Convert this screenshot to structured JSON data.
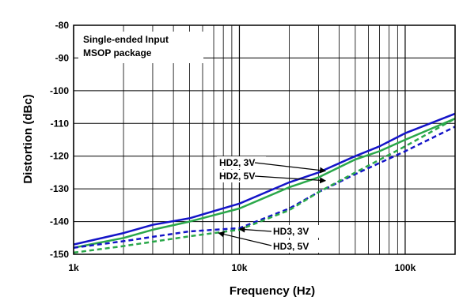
{
  "chart_data": {
    "type": "line",
    "xlabel": "Frequency (Hz)",
    "ylabel": "Distortion (dBc)",
    "xscale": "log",
    "xlim": [
      1000,
      200000
    ],
    "ylim": [
      -150,
      -80
    ],
    "grid": true,
    "x_tick_labels": [
      {
        "x": 1000,
        "label": "1k"
      },
      {
        "x": 10000,
        "label": "10k"
      },
      {
        "x": 100000,
        "label": "100k"
      }
    ],
    "y_ticks": [
      -150,
      -140,
      -130,
      -120,
      -110,
      -100,
      -90,
      -80
    ],
    "legend_text": [
      "Single-ended Input",
      "MSOP package"
    ],
    "legend_placement": "top-left",
    "series": [
      {
        "name": "HD2, 3V",
        "color": "#1414c8",
        "dash": "solid",
        "x": [
          1000,
          2000,
          3000,
          5000,
          10000,
          20000,
          30000,
          50000,
          70000,
          100000,
          200000
        ],
        "y": [
          -147,
          -143.5,
          -141,
          -139,
          -134.5,
          -128,
          -125,
          -120,
          -117,
          -113,
          -107
        ]
      },
      {
        "name": "HD2, 5V",
        "color": "#2aa84a",
        "dash": "solid",
        "x": [
          1000,
          2000,
          3000,
          5000,
          10000,
          20000,
          30000,
          50000,
          70000,
          100000,
          200000
        ],
        "y": [
          -148,
          -145,
          -142.5,
          -140,
          -136,
          -129.5,
          -126.5,
          -121,
          -118.5,
          -115,
          -108.5
        ]
      },
      {
        "name": "HD3, 3V",
        "color": "#1414c8",
        "dash": "dashed",
        "x": [
          1000,
          2000,
          5000,
          10000,
          20000,
          30000,
          50000,
          100000,
          200000
        ],
        "y": [
          -148,
          -146,
          -143,
          -142,
          -136,
          -131,
          -125.5,
          -118.5,
          -111
        ]
      },
      {
        "name": "HD3, 5V",
        "color": "#2aa84a",
        "dash": "dashed",
        "x": [
          1000,
          2000,
          5000,
          10000,
          20000,
          30000,
          50000,
          100000,
          200000
        ],
        "y": [
          -149.5,
          -147.5,
          -144.5,
          -142.5,
          -136.5,
          -131,
          -125,
          -117,
          -108.5
        ]
      }
    ],
    "annotations": [
      {
        "text": "HD2, 3V",
        "series": "HD2, 3V",
        "arrow_x": 33000,
        "arrow_y": -124.5
      },
      {
        "text": "HD2, 5V",
        "series": "HD2, 5V",
        "arrow_x": 33000,
        "arrow_y": -127.5
      },
      {
        "text": "HD3, 3V",
        "series": "HD3, 3V",
        "arrow_x": 10000,
        "arrow_y": -142.3
      },
      {
        "text": "HD3, 5V",
        "series": "HD3, 5V",
        "arrow_x": 7500,
        "arrow_y": -143.5
      }
    ]
  }
}
